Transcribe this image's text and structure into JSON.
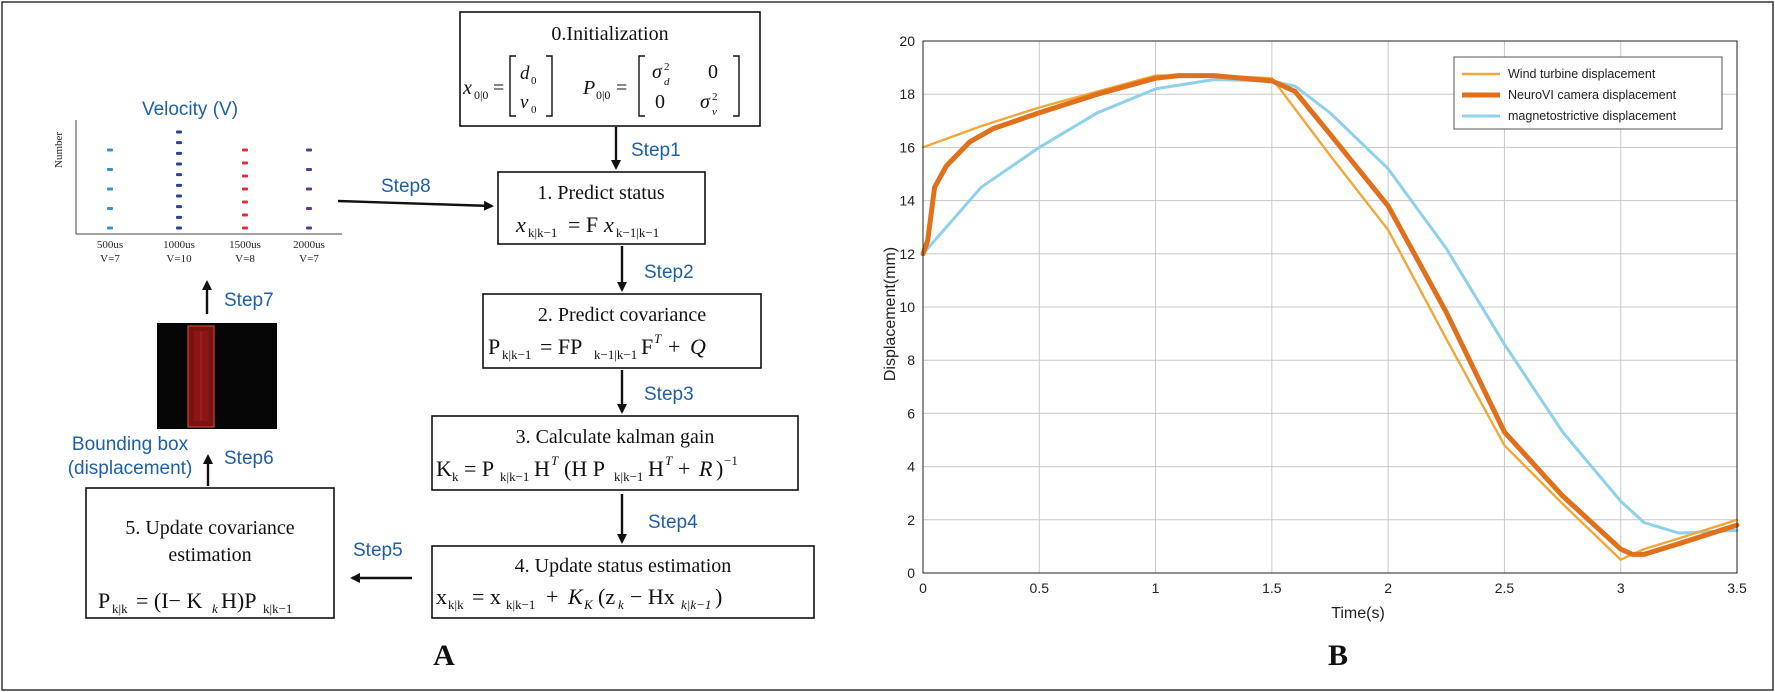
{
  "panel_a": {
    "label": "A",
    "boxes": {
      "init": {
        "title": "0.Initialization",
        "formula_x": "x₀|₀ = [d₀ ; v₀]",
        "formula_p": "P₀|₀ = [σd² 0 ; 0 σv²]"
      },
      "predict_status": {
        "title": "1. Predict status",
        "formula": "xk|k−1 = F xk−1|k−1"
      },
      "predict_cov": {
        "title": "2. Predict covariance",
        "formula": "Pk|k−1 = F Pk−1|k−1 Fᵀ + Q"
      },
      "kalman_gain": {
        "title": "3. Calculate kalman gain",
        "formula": "Kk = Pk|k−1 Hᵀ (H Pk|k−1 Hᵀ + R)⁻¹"
      },
      "update_status": {
        "title": "4. Update status estimation",
        "formula": "xk|k = xk|k−1 + KK (zk − H xk|k−1)"
      },
      "update_cov": {
        "title_line1": "5. Update covariance",
        "title_line2": "estimation",
        "formula": "Pk|k = (I − Kk H) Pk|k−1"
      }
    },
    "steps": [
      "Step1",
      "Step2",
      "Step3",
      "Step4",
      "Step5",
      "Step6",
      "Step7",
      "Step8"
    ],
    "velocity": {
      "title": "Velocity (V)",
      "ylabel": "Number",
      "columns": [
        {
          "time": "500us",
          "v": "V=7",
          "dots": 5,
          "color": "#3c8fd0"
        },
        {
          "time": "1000us",
          "v": "V=10",
          "dots": 10,
          "color": "#2b3f9e"
        },
        {
          "time": "1500us",
          "v": "V=8",
          "dots": 7,
          "color": "#d8303c"
        },
        {
          "time": "2000us",
          "v": "V=7",
          "dots": 5,
          "color": "#5a3a8a"
        }
      ]
    },
    "bounding_box": {
      "line1": "Bounding box",
      "line2": "(displacement)"
    }
  },
  "panel_b": {
    "label": "B",
    "chart_data": {
      "type": "line",
      "xlabel": "Time(s)",
      "ylabel": "Displacement(mm)",
      "xlim": [
        0,
        3.5
      ],
      "ylim": [
        0,
        20
      ],
      "xticks": [
        "0",
        "0.5",
        "1",
        "1.5",
        "2",
        "2.5",
        "3",
        "3.5"
      ],
      "yticks": [
        "0",
        "2",
        "4",
        "6",
        "8",
        "10",
        "12",
        "14",
        "16",
        "18",
        "20"
      ],
      "grid": true,
      "legend_position": "top-right",
      "series": [
        {
          "name": "Wind turbine displacement",
          "color": "#f3a73a",
          "x": [
            0,
            0.25,
            0.5,
            0.75,
            1.0,
            1.25,
            1.5,
            1.75,
            2.0,
            2.25,
            2.5,
            2.75,
            3.0,
            3.1,
            3.25,
            3.5
          ],
          "y": [
            16.0,
            16.8,
            17.5,
            18.1,
            18.7,
            18.7,
            18.6,
            15.7,
            12.9,
            8.8,
            4.8,
            2.6,
            0.5,
            0.9,
            1.3,
            2.0
          ]
        },
        {
          "name": "NeuroVI camera displacement",
          "color": "#e0701c",
          "x": [
            0,
            0.02,
            0.05,
            0.1,
            0.2,
            0.3,
            0.5,
            0.75,
            1.0,
            1.1,
            1.25,
            1.5,
            1.6,
            1.75,
            2.0,
            2.25,
            2.5,
            2.75,
            3.0,
            3.05,
            3.1,
            3.25,
            3.5
          ],
          "y": [
            12.0,
            12.5,
            14.5,
            15.3,
            16.2,
            16.7,
            17.3,
            18.0,
            18.6,
            18.7,
            18.7,
            18.5,
            18.1,
            16.5,
            13.8,
            9.8,
            5.3,
            2.9,
            0.9,
            0.7,
            0.7,
            1.1,
            1.8
          ]
        },
        {
          "name": "magnetostrictive displacement",
          "color": "#8fd0ea",
          "x": [
            0,
            0.1,
            0.25,
            0.5,
            0.75,
            1.0,
            1.25,
            1.5,
            1.6,
            1.75,
            2.0,
            2.25,
            2.5,
            2.75,
            3.0,
            3.1,
            3.25,
            3.5
          ],
          "y": [
            12.0,
            13.0,
            14.5,
            16.0,
            17.3,
            18.2,
            18.55,
            18.5,
            18.3,
            17.3,
            15.2,
            12.2,
            8.6,
            5.3,
            2.7,
            1.9,
            1.5,
            1.6
          ]
        }
      ]
    }
  }
}
